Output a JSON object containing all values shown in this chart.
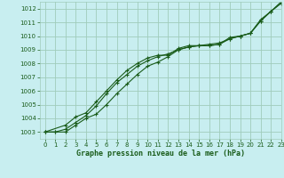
{
  "title": "",
  "xlabel": "Graphe pression niveau de la mer (hPa)",
  "ylabel": "",
  "background_color": "#c8eef0",
  "grid_color": "#a0ccbb",
  "line_color": "#1a5c1a",
  "xlim": [
    -0.5,
    23
  ],
  "ylim": [
    1002.5,
    1012.5
  ],
  "yticks": [
    1003,
    1004,
    1005,
    1006,
    1007,
    1008,
    1009,
    1010,
    1011,
    1012
  ],
  "xticks": [
    0,
    1,
    2,
    3,
    4,
    5,
    6,
    7,
    8,
    9,
    10,
    11,
    12,
    13,
    14,
    15,
    16,
    17,
    18,
    19,
    20,
    21,
    22,
    23
  ],
  "line1_x": [
    0,
    1,
    2,
    3,
    4,
    5,
    6,
    7,
    8,
    9,
    10,
    11,
    12,
    13,
    14,
    15,
    16,
    17,
    18,
    19,
    20,
    21,
    22,
    23
  ],
  "line1_y": [
    1003.0,
    1003.0,
    1003.0,
    1003.5,
    1004.0,
    1004.3,
    1005.0,
    1005.8,
    1006.5,
    1007.2,
    1007.8,
    1008.1,
    1008.5,
    1009.0,
    1009.2,
    1009.3,
    1009.3,
    1009.4,
    1009.8,
    1010.0,
    1010.2,
    1011.1,
    1011.8,
    1012.4
  ],
  "line2_x": [
    0,
    1,
    2,
    3,
    4,
    5,
    6,
    7,
    8,
    9,
    10,
    11,
    12,
    13,
    14,
    15,
    16,
    17,
    18,
    19,
    20,
    21,
    22,
    23
  ],
  "line2_y": [
    1003.0,
    1003.0,
    1003.2,
    1003.7,
    1004.2,
    1004.9,
    1005.8,
    1006.6,
    1007.2,
    1007.8,
    1008.2,
    1008.5,
    1008.7,
    1009.0,
    1009.2,
    1009.3,
    1009.4,
    1009.5,
    1009.8,
    1010.0,
    1010.2,
    1011.1,
    1011.8,
    1012.5
  ],
  "line3_x": [
    0,
    2,
    3,
    4,
    5,
    6,
    7,
    8,
    9,
    10,
    11,
    12,
    13,
    14,
    15,
    16,
    17,
    18,
    19,
    20,
    21,
    22,
    23
  ],
  "line3_y": [
    1003.0,
    1003.5,
    1004.1,
    1004.4,
    1005.2,
    1006.0,
    1006.8,
    1007.5,
    1008.0,
    1008.4,
    1008.6,
    1008.6,
    1009.1,
    1009.3,
    1009.3,
    1009.3,
    1009.4,
    1009.9,
    1010.0,
    1010.2,
    1011.2,
    1011.8,
    1012.4
  ]
}
